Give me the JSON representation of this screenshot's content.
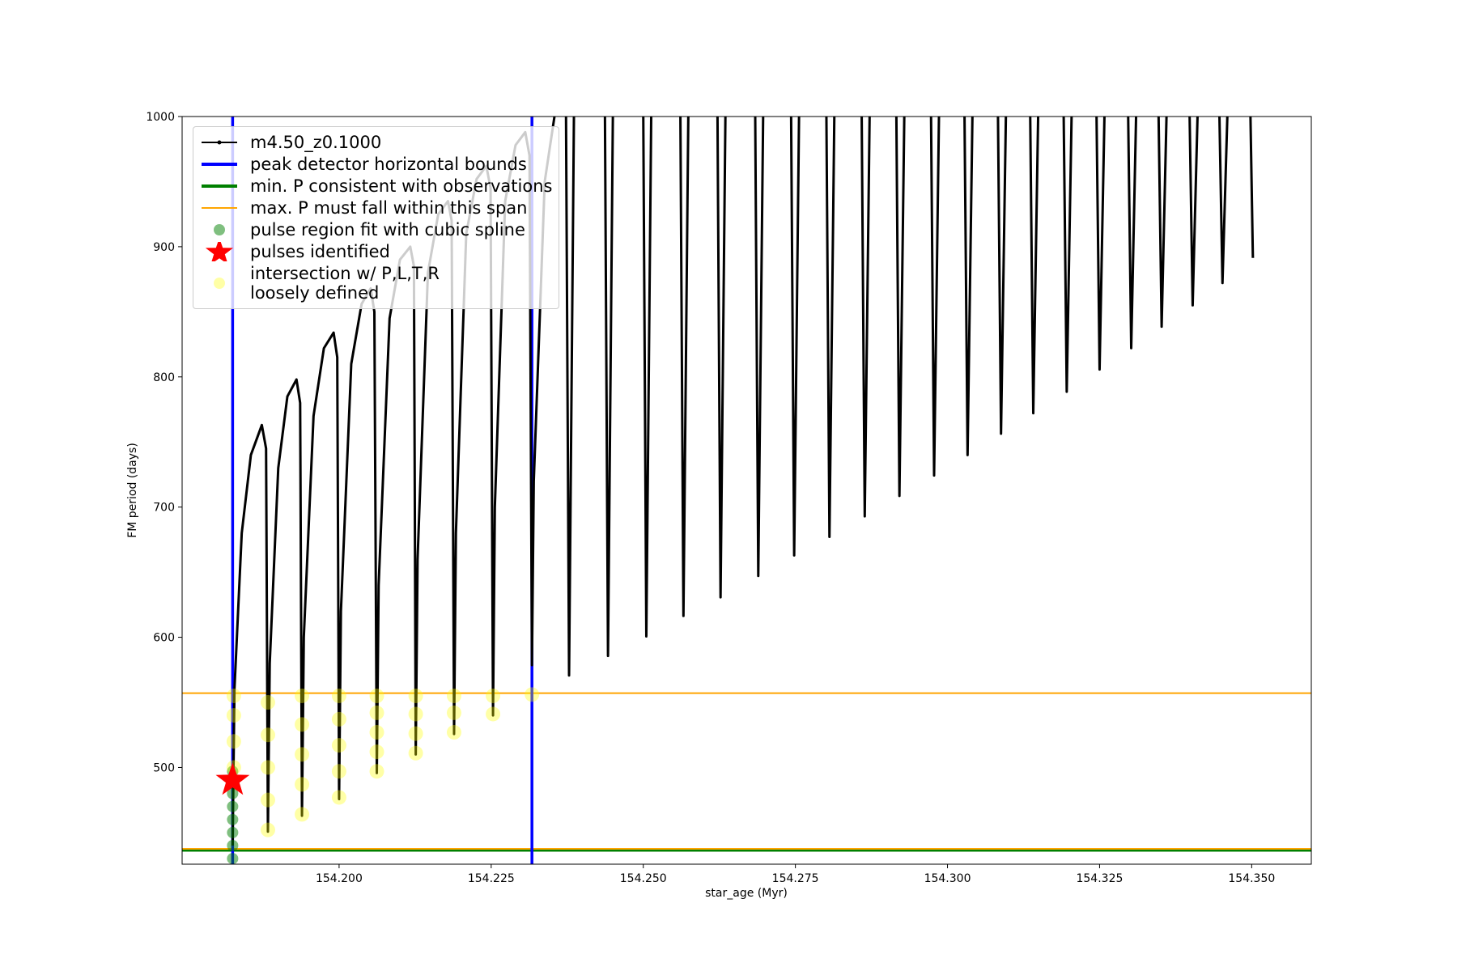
{
  "chart_data": {
    "type": "line",
    "xlabel": "star_age (Myr)",
    "ylabel": "FM period (days)",
    "xlim": [
      154.1742,
      154.3598
    ],
    "ylim": [
      425.7,
      1000
    ],
    "xticks": [
      {
        "value": 154.2,
        "label": "154.200"
      },
      {
        "value": 154.225,
        "label": "154.225"
      },
      {
        "value": 154.25,
        "label": "154.250"
      },
      {
        "value": 154.275,
        "label": "154.275"
      },
      {
        "value": 154.3,
        "label": "154.300"
      },
      {
        "value": 154.325,
        "label": "154.325"
      },
      {
        "value": 154.35,
        "label": "154.350"
      }
    ],
    "yticks": [
      500,
      600,
      700,
      800,
      900,
      1000
    ],
    "grid": false,
    "legend": "upper left",
    "series": [
      {
        "name": "m4.50_z0.1000",
        "kind": "line",
        "color": "#000000",
        "x": [
          154.1825,
          154.1828,
          154.184,
          154.1855,
          154.1873,
          154.188,
          154.1883,
          154.1886,
          154.19,
          154.1915,
          154.193,
          154.1936,
          154.1939,
          154.1942,
          154.1958,
          154.1975,
          154.1991,
          154.1997,
          154.2,
          154.2003,
          154.202,
          154.2037,
          154.2052,
          154.2058,
          154.2062,
          154.2065,
          154.2083,
          154.21,
          154.2117,
          154.2123,
          154.2126,
          154.2129,
          154.2146,
          154.2163,
          154.2179,
          154.2185,
          154.2189,
          154.2192,
          154.2209,
          154.2226,
          154.2242,
          154.2249,
          154.2253,
          154.2256,
          154.2273,
          154.229,
          154.2306,
          154.2313,
          154.2317,
          154.232,
          154.2338,
          154.2354,
          null,
          154.2373,
          154.2378,
          154.2386,
          null,
          154.2437,
          154.2442,
          154.245,
          null,
          154.25,
          154.2505,
          154.2513,
          null,
          154.2561,
          154.2566,
          154.2574,
          null,
          154.2622,
          154.2627,
          154.2635,
          null,
          154.2684,
          154.2689,
          154.2697,
          null,
          154.2743,
          154.2748,
          154.2756,
          null,
          154.2801,
          154.2806,
          154.2814,
          null,
          154.2859,
          154.2864,
          154.2872,
          null,
          154.2916,
          154.2921,
          154.2929,
          null,
          154.2973,
          154.2978,
          154.2986,
          null,
          154.3028,
          154.3033,
          154.3041,
          null,
          154.3083,
          154.3088,
          154.3096,
          null,
          154.3136,
          154.3141,
          154.3149,
          null,
          154.3191,
          154.3196,
          154.3204,
          null,
          154.3245,
          154.325,
          154.3258,
          null,
          154.3297,
          154.3302,
          154.331,
          null,
          154.3347,
          154.3352,
          154.336,
          null,
          154.3398,
          154.3403,
          154.3411,
          null,
          154.3447,
          154.3452,
          154.346,
          null,
          154.3498,
          154.3502
        ],
        "values": [
          440,
          560,
          680,
          740,
          763,
          745,
          450.7,
          580,
          730,
          785,
          798,
          780,
          462.9,
          600,
          770,
          822,
          834,
          815,
          475.7,
          620,
          810,
          856,
          868,
          850,
          495.7,
          640,
          845,
          890,
          900,
          885,
          510,
          660,
          880,
          925,
          935,
          920,
          525.7,
          680,
          910,
          952,
          962,
          945,
          540,
          700,
          935,
          978,
          988,
          970,
          578.6,
          720,
          950,
          1000,
          null,
          1000,
          570.7,
          1000,
          null,
          1000,
          585.7,
          1000,
          null,
          1000,
          600.7,
          1000,
          null,
          1000,
          616.4,
          1000,
          null,
          1000,
          630.7,
          1000,
          null,
          1000,
          647.1,
          1000,
          null,
          1000,
          662.9,
          1000,
          null,
          1000,
          677.1,
          1000,
          null,
          1000,
          692.9,
          1000,
          null,
          1000,
          708.6,
          1000,
          null,
          1000,
          724.3,
          1000,
          null,
          1000,
          740,
          1000,
          null,
          1000,
          756.4,
          1000,
          null,
          1000,
          772.1,
          1000,
          null,
          1000,
          788.6,
          1000,
          null,
          1000,
          805.7,
          1000,
          null,
          1000,
          822.1,
          1000,
          null,
          1000,
          838.6,
          1000,
          null,
          1000,
          855,
          1000,
          null,
          1000,
          872.1,
          1000,
          null,
          1000,
          891.4
        ]
      },
      {
        "name": "peak detector horizontal bounds",
        "kind": "vline",
        "color": "#0000ff",
        "x": [
          154.1825,
          154.2317
        ]
      },
      {
        "name": "min. P consistent with observations",
        "kind": "hline",
        "color": "#008000",
        "values": [
          436.4
        ]
      },
      {
        "name": "max. P must fall within this span",
        "kind": "hline",
        "color": "#ffa500",
        "values": [
          437.5,
          557.1
        ]
      },
      {
        "name": "pulse region fit with cubic spline",
        "kind": "scatter",
        "color": "#008000",
        "alpha": 0.5,
        "x": [
          154.1825,
          154.1825,
          154.1825,
          154.1825,
          154.1825,
          154.1825,
          154.1825,
          154.1825
        ],
        "values": [
          430,
          440,
          450,
          460,
          470,
          480,
          490,
          497
        ]
      },
      {
        "name": "pulses identified",
        "kind": "star",
        "color": "#ff0000",
        "x": [
          154.1825
        ],
        "values": [
          490
        ]
      },
      {
        "name": "intersection w/ P,L,T,R\nloosely defined",
        "kind": "scatter",
        "color": "#ffff00",
        "alpha": 0.35,
        "x": [
          154.1827,
          154.1827,
          154.1827,
          154.1827,
          154.1883,
          154.1883,
          154.1883,
          154.1883,
          154.1883,
          154.1939,
          154.1939,
          154.1939,
          154.1939,
          154.1939,
          154.2,
          154.2,
          154.2,
          154.2,
          154.2,
          154.2062,
          154.2062,
          154.2062,
          154.2062,
          154.2062,
          154.2126,
          154.2126,
          154.2126,
          154.2126,
          154.2189,
          154.2189,
          154.2189,
          154.2253,
          154.2253,
          154.2317
        ],
        "values": [
          500,
          520,
          540,
          555,
          452,
          475,
          500,
          525,
          550,
          464,
          487,
          510,
          533,
          555,
          477,
          497,
          517,
          537,
          555,
          497,
          512,
          527,
          542,
          555,
          511,
          526,
          541,
          555,
          527,
          542,
          555,
          541,
          555,
          556
        ]
      }
    ]
  }
}
